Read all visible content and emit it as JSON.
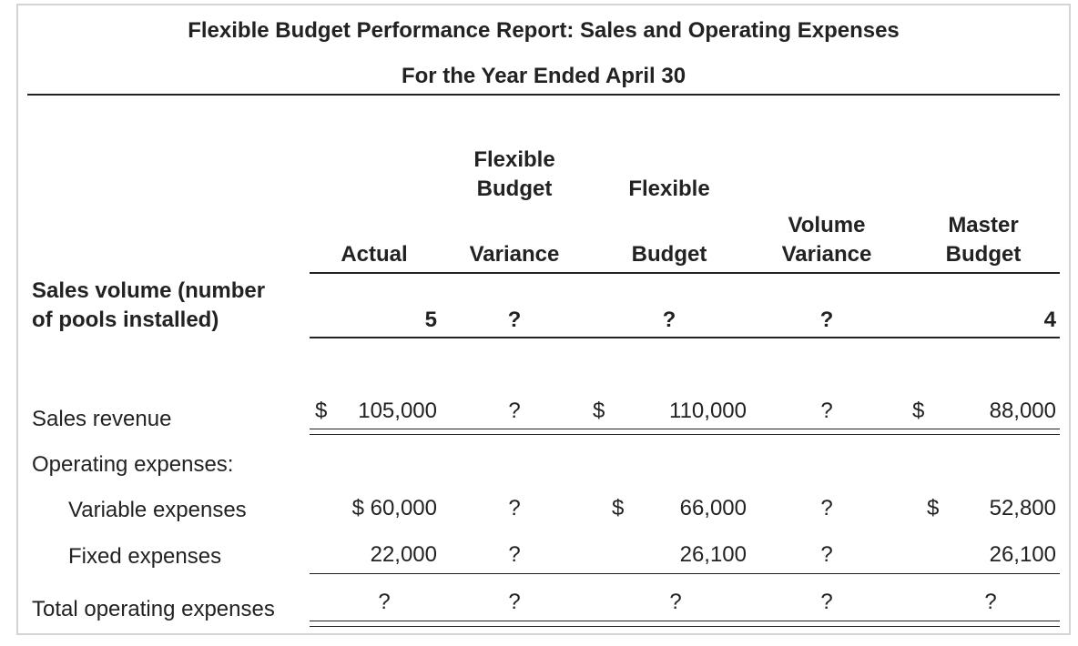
{
  "report": {
    "title": "Flexible Budget Performance Report: Sales and Operating Expenses",
    "subtitle": "For the Year Ended April 30"
  },
  "headers": {
    "actual": "Actual",
    "flexible_budget_variance_line1": "Flexible",
    "flexible_budget_variance_line2": "Budget",
    "flexible_budget_variance_line3": "Variance",
    "flexible_budget_line1": "Flexible",
    "flexible_budget_line2": "Budget",
    "volume_variance_line1": "Volume",
    "volume_variance_line2": "Variance",
    "master_budget_line1": "Master",
    "master_budget_line2": "Budget"
  },
  "rows": {
    "sales_volume": {
      "label_line1": "Sales volume (number",
      "label_line2": "of pools installed)",
      "actual": "5",
      "flex_variance": "?",
      "flexible_budget": "?",
      "volume_variance": "?",
      "master_budget": "4"
    },
    "sales_revenue": {
      "label": "Sales revenue",
      "actual_symbol": "$",
      "actual": "105,000",
      "flex_variance": "?",
      "flexible_budget_symbol": "$",
      "flexible_budget": "110,000",
      "volume_variance": "?",
      "master_budget_symbol": "$",
      "master_budget": "88,000"
    },
    "operating_expenses_header": {
      "label": "Operating expenses:"
    },
    "variable_expenses": {
      "label": "Variable expenses",
      "actual": "$ 60,000",
      "flex_variance": "?",
      "flexible_budget_symbol": "$",
      "flexible_budget": "66,000",
      "volume_variance": "?",
      "master_budget_symbol": "$",
      "master_budget": "52,800"
    },
    "fixed_expenses": {
      "label": "Fixed expenses",
      "actual": "22,000",
      "flex_variance": "?",
      "flexible_budget": "26,100",
      "volume_variance": "?",
      "master_budget": "26,100"
    },
    "total_operating_expenses": {
      "label": "Total operating expenses",
      "actual": "?",
      "flex_variance": "?",
      "flexible_budget": "?",
      "volume_variance": "?",
      "master_budget": "?"
    }
  }
}
